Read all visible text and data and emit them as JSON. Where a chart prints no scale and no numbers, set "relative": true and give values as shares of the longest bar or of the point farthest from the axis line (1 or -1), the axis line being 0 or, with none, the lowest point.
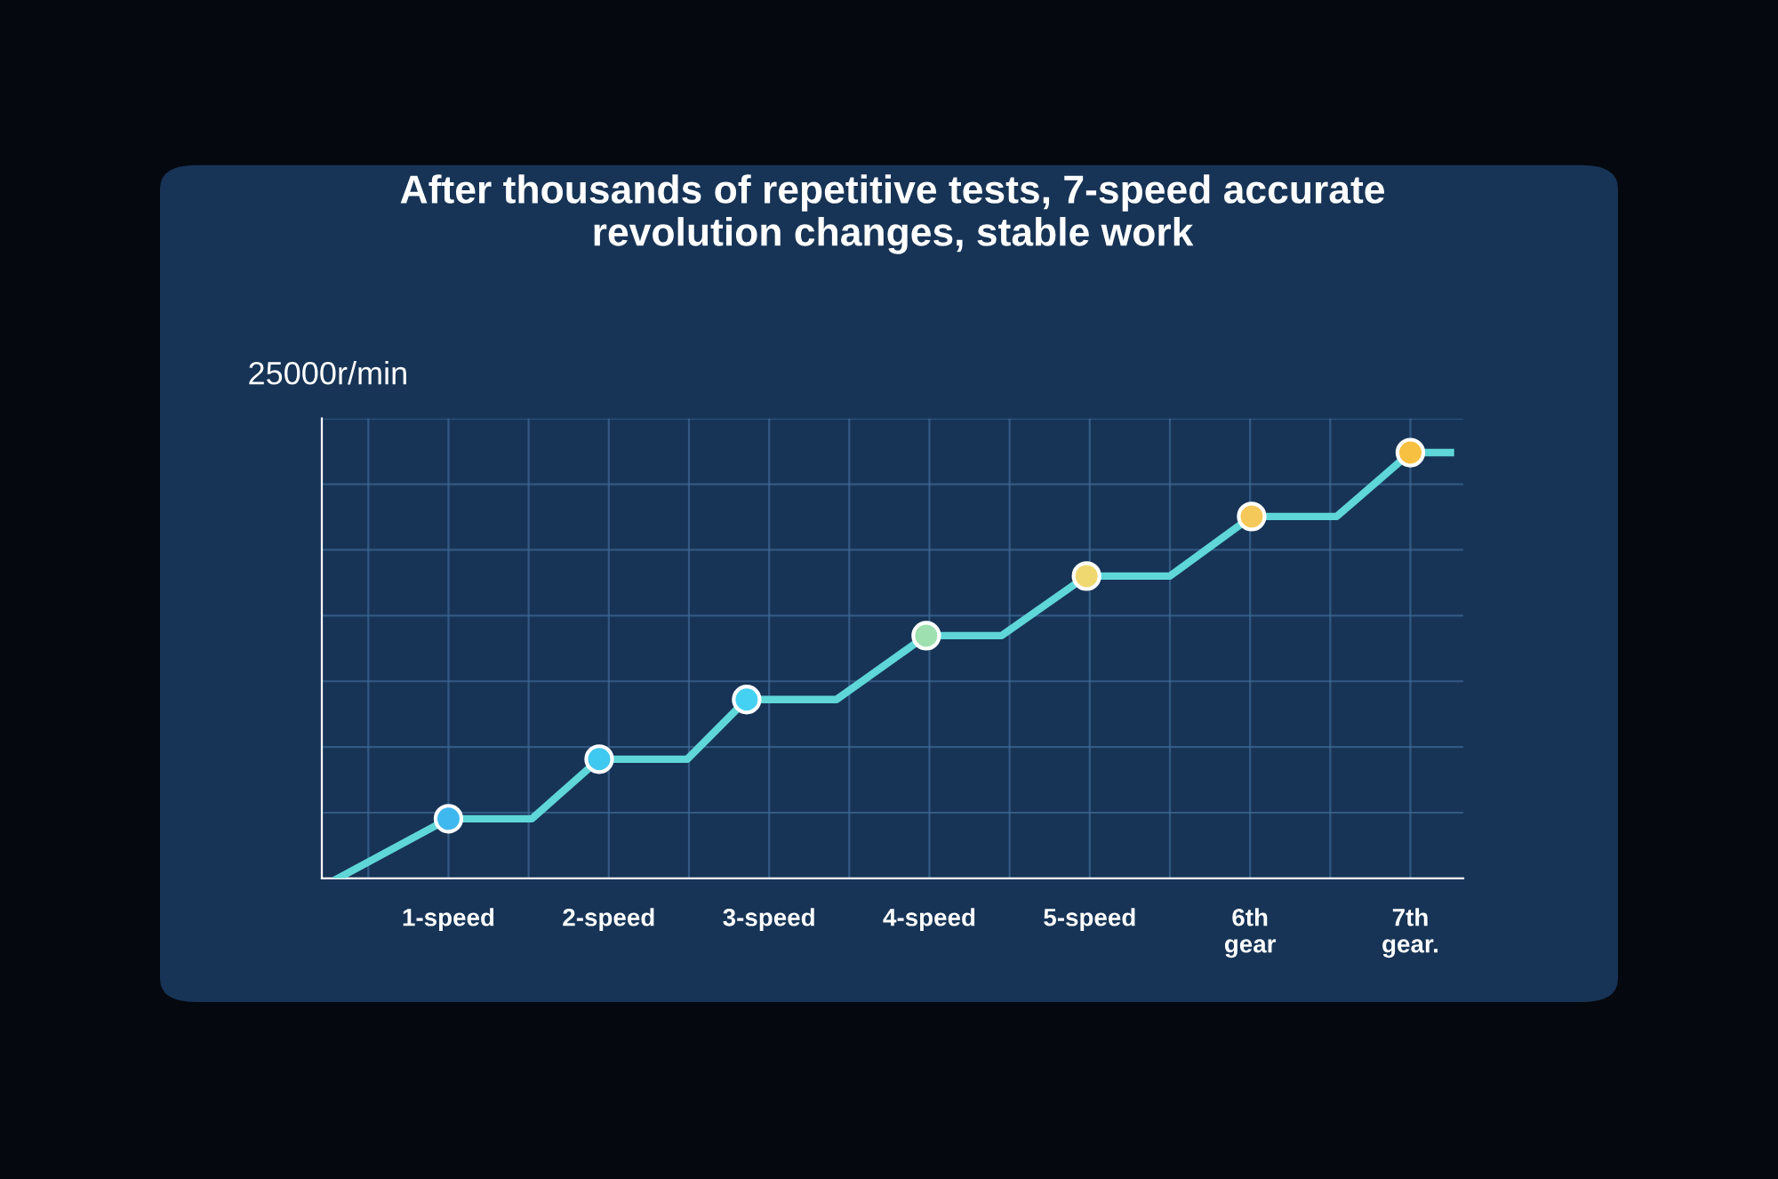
{
  "chart_data": {
    "type": "line",
    "title": "After thousands of repetitive tests, 7-speed accurate\nrevolution changes, stable work",
    "ylabel": "25000r/min",
    "relative": true,
    "grid": true,
    "xlim": [
      0.21,
      7.33
    ],
    "xticks": [
      {
        "value": 1,
        "label": "1-speed"
      },
      {
        "value": 2,
        "label": "2-speed"
      },
      {
        "value": 3,
        "label": "3-speed"
      },
      {
        "value": 4,
        "label": "4-speed"
      },
      {
        "value": 5,
        "label": "5-speed"
      },
      {
        "value": 6,
        "label": "6th\ngear"
      },
      {
        "value": 7,
        "label": "7th\ngear."
      }
    ],
    "series": [
      {
        "color": "#5fd6d8",
        "marker": "none",
        "x": [
          0.31,
          1,
          1.52,
          1.94,
          2.49,
          2.86,
          3.42,
          3.98,
          4.45,
          4.98,
          5.5,
          6.01,
          6.54,
          7,
          7.25
        ],
        "values": [
          0,
          0.14,
          0.14,
          0.28,
          0.28,
          0.42,
          0.42,
          0.57,
          0.57,
          0.71,
          0.71,
          0.85,
          0.85,
          1.0,
          1.0
        ]
      },
      {
        "type": "scatter",
        "marker": "circle",
        "x": [
          1,
          1.94,
          2.86,
          3.98,
          4.98,
          6.01,
          7
        ],
        "values": [
          0.14,
          0.28,
          0.42,
          0.57,
          0.71,
          0.85,
          1.0
        ],
        "colors": [
          "#3fb8f0",
          "#3fc8f0",
          "#45d2f2",
          "#9fe0b0",
          "#f0d870",
          "#f5c85a",
          "#f8c040"
        ]
      }
    ]
  }
}
